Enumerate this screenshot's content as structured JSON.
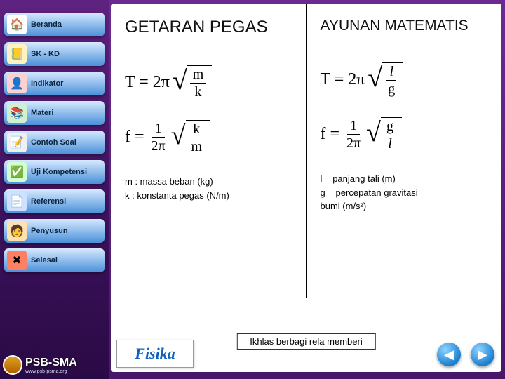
{
  "sidebar": {
    "items": [
      {
        "label": "Beranda",
        "icon": "🏠",
        "iconbg": "#ffffff"
      },
      {
        "label": "SK - KD",
        "icon": "📒",
        "iconbg": "#fff3c0"
      },
      {
        "label": "Indikator",
        "icon": "👤",
        "iconbg": "#ffd0d0"
      },
      {
        "label": "Materi",
        "icon": "📚",
        "iconbg": "#d0f0d0"
      },
      {
        "label": "Contoh Soal",
        "icon": "📝",
        "iconbg": "#f0f0f0"
      },
      {
        "label": "Uji Kompetensi",
        "icon": "✅",
        "iconbg": "#d0ffd0"
      },
      {
        "label": "Referensi",
        "icon": "📄",
        "iconbg": "#d0e0ff"
      },
      {
        "label": "Penyusun",
        "icon": "🧑",
        "iconbg": "#ffe0b0"
      },
      {
        "label": "Selesai",
        "icon": "✖",
        "iconbg": "#ff8060"
      }
    ],
    "brand": "PSB-SMA",
    "brand_url": "www.psb-psma.org"
  },
  "main": {
    "left": {
      "title": "GETARAN PEGAS",
      "formula1_lhs": "T = 2π",
      "formula1_num": "m",
      "formula1_den": "k",
      "formula2_lhs": "f =",
      "formula2_frac_num": "1",
      "formula2_frac_den": "2π",
      "formula2_sqrt_num": "k",
      "formula2_sqrt_den": "m",
      "legend1": "m : massa beban (kg)",
      "legend2": "k : konstanta pegas (N/m)"
    },
    "right": {
      "title": "AYUNAN MATEMATIS",
      "formula1_lhs": "T = 2π",
      "formula1_num": "l",
      "formula1_den": "g",
      "formula2_lhs": "f =",
      "formula2_frac_num": "1",
      "formula2_frac_den": "2π",
      "formula2_sqrt_num": "g",
      "formula2_sqrt_den": "l",
      "legend1": "l = panjang tali (m)",
      "legend2": "g = percepatan gravitasi",
      "legend3": "bumi (m/s²)"
    },
    "footer_brand": "Fisika",
    "motto": "Ikhlas berbagi rela memberi"
  },
  "nav_icon_colors": {
    "button_gradient_top": "#d6e9ff",
    "button_gradient_bottom": "#4a90d9"
  }
}
